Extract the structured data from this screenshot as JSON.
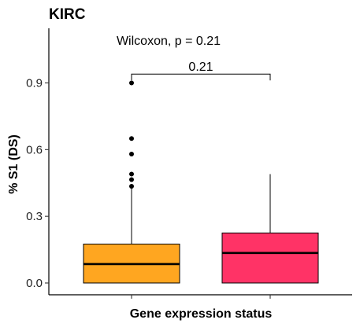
{
  "chart_data": {
    "type": "boxplot",
    "title": "KIRC",
    "xlabel": "Gene expression status",
    "ylabel": "% S1 (DS)",
    "ylim": [
      -0.04,
      1.15
    ],
    "yticks": [
      0.0,
      0.3,
      0.6,
      0.9
    ],
    "ytick_labels": [
      "0.0",
      "0.3",
      "0.6",
      "0.9"
    ],
    "grid": false,
    "legend": "none",
    "series": [
      {
        "color": "#FFA620",
        "min": 0.0,
        "q1": 0.0,
        "median": 0.085,
        "q3": 0.175,
        "whisker_high": 0.43,
        "outliers": [
          0.435,
          0.465,
          0.49,
          0.58,
          0.65,
          0.9
        ]
      },
      {
        "color": "#FF3366",
        "min": 0.0,
        "q1": 0.0,
        "median": 0.135,
        "q3": 0.225,
        "whisker_high": 0.49,
        "outliers": []
      }
    ],
    "annotations": {
      "test_label": "Wilcoxon, p = 0.21",
      "bracket_label": "0.21",
      "bracket_y": 0.94
    }
  }
}
